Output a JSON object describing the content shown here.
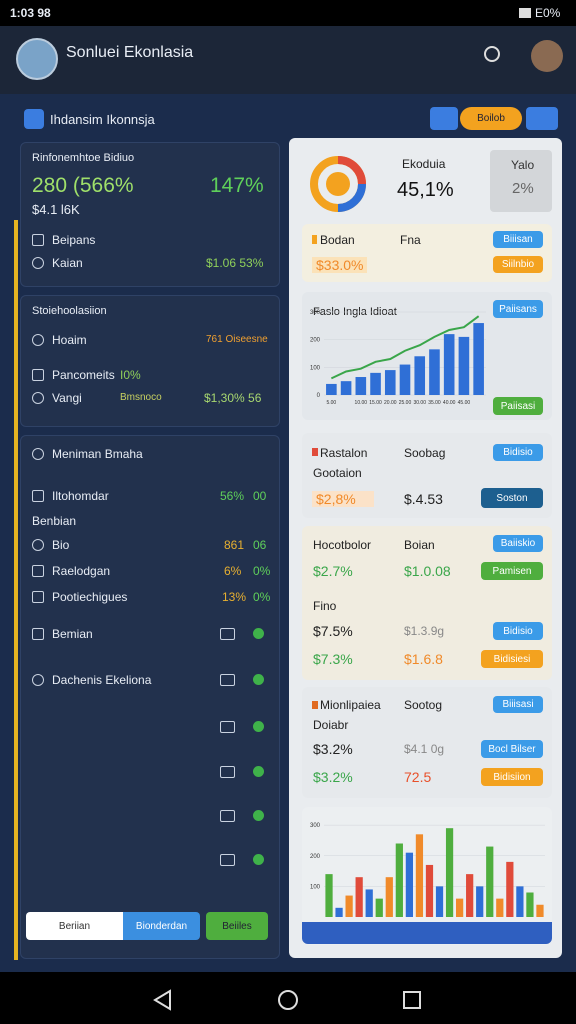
{
  "status": {
    "time": "1:03 98",
    "battery": "E0%"
  },
  "header": {
    "title": "Sonluei Ekonlasia"
  },
  "toolbar": {
    "title": "Ihdansim Ikonnsja",
    "button": "Boilob"
  },
  "summary": {
    "title": "Rinfonemhtoe Bidiuo",
    "value": "280 (566%",
    "change": "147%",
    "sub": "$4.1 l6K",
    "rows": [
      {
        "label": "Beipans"
      },
      {
        "label": "Kaian",
        "value": "$1.06 53%"
      }
    ]
  },
  "stats": {
    "title": "Stoiehoolasiion",
    "rows": [
      {
        "label": "Hoaim",
        "value": "761 Oiseesne"
      },
      {
        "label": "Pancomeits",
        "value": "I0%"
      },
      {
        "label": "Vangi",
        "note": "Bmsnoco",
        "value": "$1,30% 56"
      }
    ]
  },
  "list": {
    "title": "Meniman Bmaha",
    "items": [
      {
        "label": "Iltohomdar",
        "a": "56%",
        "b": "00"
      },
      {
        "label": "Benbian"
      },
      {
        "label": "Bio",
        "a": "861",
        "b": "06"
      },
      {
        "label": "Raelodgan",
        "a": "6%",
        "b": "0%"
      },
      {
        "label": "Pootiechigues",
        "a": "13%",
        "b": "0%"
      },
      {
        "label": "Bemian"
      },
      {
        "label": "Dachenis Ekeliona"
      }
    ]
  },
  "buttons": [
    "Beriian",
    "Bionderdan",
    "Beiiles"
  ],
  "gauge": {
    "title": "Ekoduia",
    "value": "45,1%",
    "side_title": "Yalo",
    "side_value": "2%"
  },
  "row1": {
    "label": "Bodan",
    "col": "Fna",
    "value": "$33.0%",
    "btn1": "Biiisan",
    "btn2": "Siilnbio"
  },
  "trend": {
    "title": "Faslo Ingla Idioat",
    "btn1": "Paiisans",
    "btn2": "Paiisasi",
    "chart": {
      "type": "bar",
      "categories": [
        "5.00",
        null,
        "10.00",
        "15.00",
        "20.00",
        "25.00",
        "30.00",
        "35.00",
        "40.00",
        "45.00",
        null
      ],
      "values": [
        40,
        50,
        65,
        80,
        90,
        110,
        140,
        165,
        220,
        210,
        260
      ],
      "line": [
        60,
        85,
        95,
        120,
        130,
        160,
        180,
        210,
        235,
        245,
        285
      ],
      "color": "#2f6fd6",
      "line_color": "#3aa64a",
      "ylim": [
        0,
        300
      ],
      "yticks": [
        0,
        100,
        200,
        300
      ]
    }
  },
  "c3": {
    "title": "Rastalon",
    "sub": "Gootaion",
    "col": "Soobag",
    "value": "$2,8%",
    "col_value": "$.4.53",
    "btn1": "Bidisio",
    "btn2": "Soston"
  },
  "c4": {
    "title": "Hocotbolor",
    "col": "Boian",
    "btn1": "Baiiskio",
    "r1": "$2.7%",
    "r1b": "$1.0.08",
    "btn2": "Pamisen",
    "sub": "Fino",
    "r2": "$7.5%",
    "r2b": "$1.3.9g",
    "btn3": "Bidisio",
    "r3": "$7.3%",
    "r3b": "$1.6.8",
    "btn4": "Bidisiesi"
  },
  "c5": {
    "title": "Mionlipaiea",
    "col": "Sootog",
    "btn1": "Biiisasi",
    "sub": "Doiabr",
    "r1": "$3.2%",
    "r1b": "$4.1 0g",
    "btn2": "Bocl Bilser",
    "r2": "$3.2%",
    "r2b": "72.5",
    "btn3": "Bidisiion"
  },
  "bottom_chart": {
    "type": "bar",
    "values": [
      140,
      30,
      70,
      130,
      90,
      60,
      130,
      240,
      210,
      270,
      170,
      100,
      290,
      60,
      140,
      100,
      230,
      60,
      180,
      100,
      80,
      40
    ],
    "colors": [
      "#4fae3e",
      "#2f6fd6",
      "#f08a2a",
      "#e04b3a",
      "#2f6fd6",
      "#4fae3e",
      "#f08a2a",
      "#4fae3e",
      "#2f6fd6",
      "#f08a2a",
      "#e04b3a",
      "#2f6fd6",
      "#4fae3e",
      "#f08a2a",
      "#e04b3a",
      "#2f6fd6",
      "#4fae3e",
      "#f08a2a",
      "#e04b3a",
      "#2f6fd6",
      "#4fae3e",
      "#f08a2a"
    ],
    "ylim": [
      0,
      320
    ],
    "yticks": [
      100,
      200,
      300
    ]
  }
}
